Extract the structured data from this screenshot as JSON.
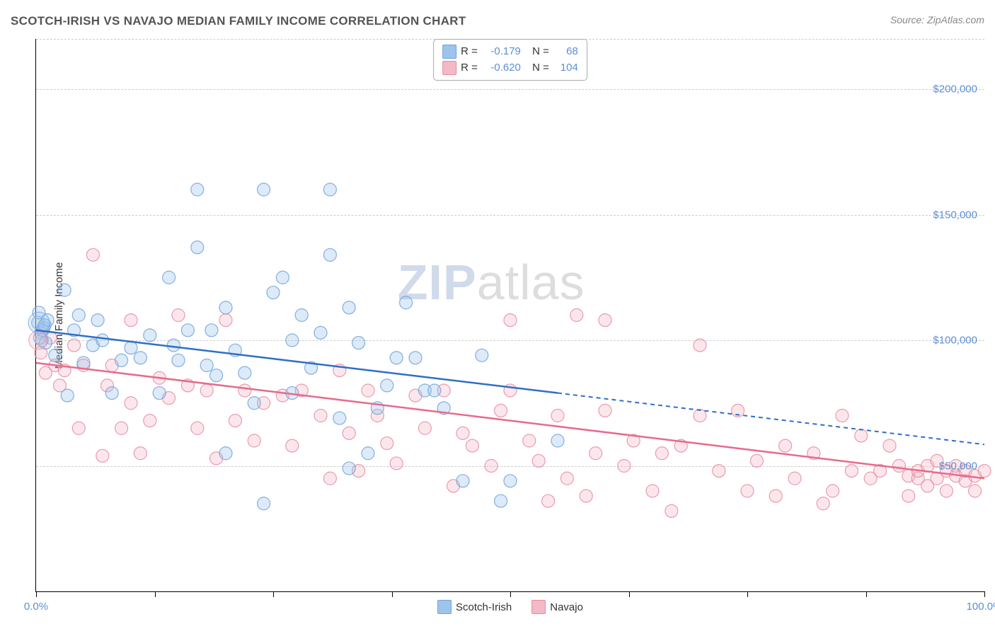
{
  "title": "SCOTCH-IRISH VS NAVAJO MEDIAN FAMILY INCOME CORRELATION CHART",
  "source_label": "Source: ZipAtlas.com",
  "y_axis_label": "Median Family Income",
  "watermark_part1": "ZIP",
  "watermark_part2": "atlas",
  "chart": {
    "type": "scatter",
    "xlim": [
      0,
      100
    ],
    "ylim": [
      0,
      220000
    ],
    "x_ticks": [
      0,
      12.5,
      25,
      37.5,
      50,
      62.5,
      75,
      87.5,
      100
    ],
    "x_tick_labels_shown": {
      "0": "0.0%",
      "100": "100.0%"
    },
    "y_gridlines": [
      50000,
      100000,
      150000,
      200000
    ],
    "y_tick_labels": {
      "50000": "$50,000",
      "100000": "$100,000",
      "150000": "$150,000",
      "200000": "$200,000"
    },
    "marker_radius": 9,
    "marker_fill_opacity": 0.35,
    "marker_stroke_opacity": 0.85,
    "marker_stroke_width": 1.2,
    "line_width_solid": 2.5,
    "line_width_dashed": 2,
    "dash_pattern": "6,5",
    "grid_color": "#cccccc",
    "axis_color": "#000000",
    "background": "#ffffff"
  },
  "series": {
    "scotch_irish": {
      "label": "Scotch-Irish",
      "fill": "#9ec4ec",
      "stroke": "#6fa3db",
      "line_color": "#2e6fc7",
      "R": "-0.179",
      "N": "68",
      "regression": {
        "solid": {
          "x1": 0,
          "y1": 104000,
          "x2": 55,
          "y2": 79000
        },
        "dashed": {
          "x1": 55,
          "y1": 79000,
          "x2": 100,
          "y2": 58500
        }
      },
      "points": [
        [
          0.2,
          107000
        ],
        [
          0.3,
          111000
        ],
        [
          0.5,
          103000
        ],
        [
          0.6,
          100000
        ],
        [
          0.8,
          105000
        ],
        [
          1.0,
          99000
        ],
        [
          1.2,
          108000
        ],
        [
          0.4,
          101000
        ],
        [
          0.7,
          104000
        ],
        [
          0.9,
          106000
        ],
        [
          2,
          94000
        ],
        [
          3,
          120000
        ],
        [
          3.3,
          78000
        ],
        [
          4,
          104000
        ],
        [
          4.5,
          110000
        ],
        [
          5,
          91000
        ],
        [
          6,
          98000
        ],
        [
          6.5,
          108000
        ],
        [
          7,
          100000
        ],
        [
          8,
          79000
        ],
        [
          9,
          92000
        ],
        [
          10,
          97000
        ],
        [
          11,
          93000
        ],
        [
          12,
          102000
        ],
        [
          13,
          79000
        ],
        [
          14,
          125000
        ],
        [
          14.5,
          98000
        ],
        [
          15,
          92000
        ],
        [
          16,
          104000
        ],
        [
          17,
          137000
        ],
        [
          17,
          160000
        ],
        [
          18,
          90000
        ],
        [
          18.5,
          104000
        ],
        [
          19,
          86000
        ],
        [
          20,
          55000
        ],
        [
          20,
          113000
        ],
        [
          21,
          96000
        ],
        [
          22,
          87000
        ],
        [
          23,
          75000
        ],
        [
          24,
          160000
        ],
        [
          24,
          35000
        ],
        [
          25,
          119000
        ],
        [
          26,
          125000
        ],
        [
          27,
          79000
        ],
        [
          27,
          100000
        ],
        [
          28,
          110000
        ],
        [
          29,
          89000
        ],
        [
          30,
          103000
        ],
        [
          31,
          134000
        ],
        [
          31,
          160000
        ],
        [
          32,
          69000
        ],
        [
          33,
          113000
        ],
        [
          33,
          49000
        ],
        [
          34,
          99000
        ],
        [
          35,
          55000
        ],
        [
          36,
          73000
        ],
        [
          37,
          82000
        ],
        [
          38,
          93000
        ],
        [
          39,
          115000
        ],
        [
          40,
          93000
        ],
        [
          41,
          80000
        ],
        [
          42,
          80000
        ],
        [
          43,
          73000
        ],
        [
          45,
          44000
        ],
        [
          47,
          94000
        ],
        [
          49,
          36000
        ],
        [
          50,
          44000
        ],
        [
          55,
          60000
        ]
      ]
    },
    "navajo": {
      "label": "Navajo",
      "fill": "#f4b9c6",
      "stroke": "#e98aa0",
      "line_color": "#e76a8c",
      "R": "-0.620",
      "N": "104",
      "regression": {
        "solid": {
          "x1": 0,
          "y1": 91000,
          "x2": 100,
          "y2": 45000
        },
        "dashed": null
      },
      "points": [
        [
          0.5,
          95000
        ],
        [
          1,
          87000
        ],
        [
          1.5,
          101000
        ],
        [
          2,
          90000
        ],
        [
          2.5,
          82000
        ],
        [
          3,
          88000
        ],
        [
          4,
          98000
        ],
        [
          4.5,
          65000
        ],
        [
          5,
          90000
        ],
        [
          6,
          134000
        ],
        [
          7,
          54000
        ],
        [
          7.5,
          82000
        ],
        [
          8,
          90000
        ],
        [
          9,
          65000
        ],
        [
          10,
          75000
        ],
        [
          10,
          108000
        ],
        [
          11,
          55000
        ],
        [
          12,
          68000
        ],
        [
          13,
          85000
        ],
        [
          14,
          77000
        ],
        [
          15,
          110000
        ],
        [
          16,
          82000
        ],
        [
          17,
          65000
        ],
        [
          18,
          80000
        ],
        [
          19,
          53000
        ],
        [
          20,
          108000
        ],
        [
          21,
          68000
        ],
        [
          22,
          80000
        ],
        [
          23,
          60000
        ],
        [
          24,
          75000
        ],
        [
          26,
          78000
        ],
        [
          27,
          58000
        ],
        [
          28,
          80000
        ],
        [
          30,
          70000
        ],
        [
          31,
          45000
        ],
        [
          32,
          88000
        ],
        [
          33,
          63000
        ],
        [
          34,
          48000
        ],
        [
          35,
          80000
        ],
        [
          36,
          70000
        ],
        [
          37,
          59000
        ],
        [
          38,
          51000
        ],
        [
          40,
          78000
        ],
        [
          41,
          65000
        ],
        [
          43,
          80000
        ],
        [
          44,
          42000
        ],
        [
          45,
          63000
        ],
        [
          46,
          58000
        ],
        [
          48,
          50000
        ],
        [
          49,
          72000
        ],
        [
          50,
          80000
        ],
        [
          50,
          108000
        ],
        [
          52,
          60000
        ],
        [
          53,
          52000
        ],
        [
          54,
          36000
        ],
        [
          55,
          70000
        ],
        [
          56,
          45000
        ],
        [
          57,
          110000
        ],
        [
          58,
          38000
        ],
        [
          59,
          55000
        ],
        [
          60,
          72000
        ],
        [
          60,
          108000
        ],
        [
          62,
          50000
        ],
        [
          63,
          60000
        ],
        [
          65,
          40000
        ],
        [
          66,
          55000
        ],
        [
          67,
          32000
        ],
        [
          68,
          58000
        ],
        [
          70,
          70000
        ],
        [
          70,
          98000
        ],
        [
          72,
          48000
        ],
        [
          74,
          72000
        ],
        [
          75,
          40000
        ],
        [
          76,
          52000
        ],
        [
          78,
          38000
        ],
        [
          79,
          58000
        ],
        [
          80,
          45000
        ],
        [
          82,
          55000
        ],
        [
          83,
          35000
        ],
        [
          84,
          40000
        ],
        [
          85,
          70000
        ],
        [
          86,
          48000
        ],
        [
          87,
          62000
        ],
        [
          88,
          45000
        ],
        [
          89,
          48000
        ],
        [
          90,
          58000
        ],
        [
          91,
          50000
        ],
        [
          92,
          46000
        ],
        [
          92,
          38000
        ],
        [
          93,
          45000
        ],
        [
          93,
          48000
        ],
        [
          94,
          50000
        ],
        [
          94,
          42000
        ],
        [
          95,
          52000
        ],
        [
          95,
          45000
        ],
        [
          96,
          48000
        ],
        [
          96,
          40000
        ],
        [
          97,
          46000
        ],
        [
          97,
          50000
        ],
        [
          98,
          44000
        ],
        [
          98,
          48000
        ],
        [
          99,
          40000
        ],
        [
          99,
          46000
        ],
        [
          100,
          48000
        ]
      ]
    }
  },
  "stats_labels": {
    "R": "R =",
    "N": "N ="
  }
}
